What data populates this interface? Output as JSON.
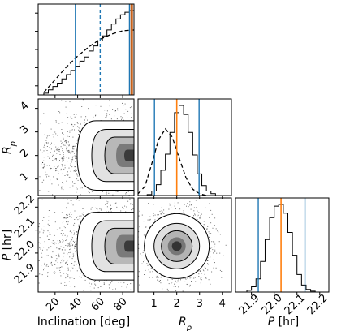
{
  "chart_data": {
    "type": "corner",
    "parameters": [
      {
        "name": "Inclination",
        "label": "Inclination [deg]",
        "range": [
          5,
          90
        ],
        "ticks": [
          20,
          40,
          60,
          80
        ],
        "tick_labels": [
          "20",
          "40",
          "60",
          "80"
        ]
      },
      {
        "name": "Rp",
        "label": "R_p",
        "range": [
          0.3,
          4.4
        ],
        "ticks": [
          1,
          2,
          3,
          4
        ],
        "tick_labels": [
          "1",
          "2",
          "3",
          "4"
        ]
      },
      {
        "name": "P",
        "label": "P [hr]",
        "range": [
          21.83,
          22.24
        ],
        "ticks": [
          21.9,
          22.0,
          22.1,
          22.2
        ],
        "tick_labels": [
          "21.9",
          "22.0",
          "22.1",
          "22.2"
        ]
      }
    ],
    "marginals": [
      {
        "param": "Inclination",
        "hist_edges": [
          10,
          14,
          18,
          22,
          26,
          30,
          34,
          38,
          42,
          46,
          50,
          54,
          58,
          62,
          66,
          70,
          74,
          78,
          82,
          86,
          90
        ],
        "hist_values": [
          0.02,
          0.06,
          0.1,
          0.14,
          0.19,
          0.24,
          0.29,
          0.34,
          0.4,
          0.45,
          0.52,
          0.58,
          0.64,
          0.7,
          0.77,
          0.84,
          0.9,
          0.95,
          0.98,
          1.0
        ],
        "prior_curve": {
          "x": [
            10,
            20,
            30,
            40,
            50,
            60,
            70,
            80,
            90
          ],
          "y": [
            0.03,
            0.18,
            0.33,
            0.46,
            0.57,
            0.66,
            0.72,
            0.76,
            0.77
          ]
        },
        "quantile_lines": [
          38,
          86
        ],
        "median_dashed": 60,
        "truth": 88
      },
      {
        "param": "Rp",
        "hist_edges": [
          0.3,
          0.5,
          0.7,
          0.9,
          1.1,
          1.3,
          1.5,
          1.7,
          1.9,
          2.1,
          2.3,
          2.5,
          2.7,
          2.9,
          3.1,
          3.3,
          3.5,
          3.7,
          3.9
        ],
        "hist_values": [
          0.0,
          0.0,
          0.01,
          0.05,
          0.12,
          0.28,
          0.46,
          0.7,
          0.92,
          1.0,
          0.9,
          0.7,
          0.45,
          0.24,
          0.11,
          0.05,
          0.02,
          0.0
        ],
        "prior_curve": {
          "x": [
            0.3,
            0.6,
            0.9,
            1.2,
            1.5,
            1.8,
            2.1,
            2.4,
            2.7,
            3.0,
            3.3
          ],
          "y": [
            0.02,
            0.1,
            0.35,
            0.62,
            0.74,
            0.65,
            0.42,
            0.2,
            0.07,
            0.02,
            0.0
          ]
        },
        "quantile_lines": [
          1.02,
          2.98
        ],
        "truth": 2.0
      },
      {
        "param": "P",
        "hist_edges": [
          21.86,
          21.88,
          21.9,
          21.92,
          21.94,
          21.96,
          21.98,
          22.0,
          22.02,
          22.04,
          22.06,
          22.08,
          22.1,
          22.12,
          22.14,
          22.16,
          22.18,
          22.2
        ],
        "hist_values": [
          0.0,
          0.02,
          0.06,
          0.15,
          0.35,
          0.6,
          0.85,
          0.98,
          1.0,
          0.9,
          0.68,
          0.42,
          0.2,
          0.08,
          0.03,
          0.01,
          0.0
        ],
        "quantile_lines": [
          21.93,
          22.135
        ],
        "truth": 22.03
      }
    ],
    "joint": [
      {
        "x": "Inclination",
        "y": "Rp",
        "center": [
          84,
          2.0
        ]
      },
      {
        "x": "Inclination",
        "y": "P",
        "center": [
          84,
          22.03
        ]
      },
      {
        "x": "Rp",
        "y": "P",
        "center": [
          2.0,
          22.03
        ]
      }
    ],
    "colors": {
      "quantile": "#1f77b4",
      "truth": "#ff7f0e",
      "truth_dark": "#c8611a",
      "hist": "#000000"
    }
  }
}
